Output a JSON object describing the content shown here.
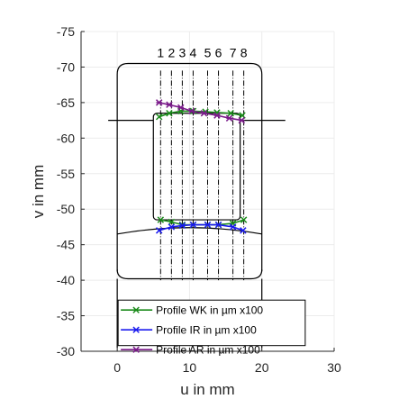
{
  "chart_data": {
    "type": "line",
    "xlabel": "u in mm",
    "ylabel": "v in mm",
    "xlim": [
      -5,
      30
    ],
    "ylim": [
      -75,
      -30
    ],
    "y_reversed": true,
    "grid": true,
    "legend_position": "bottom-right",
    "xticks": [
      0,
      10,
      20,
      30
    ],
    "yticks": [
      -75,
      -70,
      -65,
      -60,
      -55,
      -50,
      -45,
      -40,
      -35,
      -30
    ],
    "segments": {
      "labels": [
        "1",
        "2",
        "3",
        "4",
        "5",
        "6",
        "7",
        "8"
      ],
      "x": [
        6,
        7.5,
        9,
        10.5,
        12.5,
        14,
        16,
        17.5
      ]
    },
    "outlines": [
      {
        "name": "outer",
        "points": [
          [
            0,
            -70.5
          ],
          [
            20,
            -70.5
          ],
          [
            20,
            -41
          ]
        ]
      },
      {
        "name": "inner",
        "points": [
          [
            0,
            -62.5
          ],
          [
            5,
            -62.5
          ],
          [
            5,
            -48.5
          ],
          [
            17,
            -48.5
          ],
          [
            17,
            -62.5
          ],
          [
            22,
            -62.5
          ]
        ]
      }
    ],
    "series": [
      {
        "name": "Profile WK in µm x100",
        "color": "#1a8a1a",
        "top": [
          [
            5.8,
            -63
          ],
          [
            7.2,
            -63.5
          ],
          [
            8.8,
            -63.8
          ],
          [
            10.5,
            -63.8
          ],
          [
            12.2,
            -63.7
          ],
          [
            13.8,
            -63.6
          ],
          [
            15.7,
            -63.5
          ],
          [
            17.3,
            -63.2
          ]
        ],
        "bottom": [
          [
            6,
            -48.5
          ],
          [
            7.5,
            -48.2
          ],
          [
            9,
            -47.8
          ],
          [
            10.5,
            -47.8
          ],
          [
            12.5,
            -47.8
          ],
          [
            14,
            -47.8
          ],
          [
            16,
            -48
          ],
          [
            17.5,
            -48.5
          ]
        ]
      },
      {
        "name": "Profile IR   in µm x100",
        "color": "#1a1aee",
        "top": [],
        "bottom": [
          [
            5.8,
            -47
          ],
          [
            7.5,
            -47.5
          ],
          [
            9,
            -47.7
          ],
          [
            10.5,
            -47.8
          ],
          [
            12.5,
            -47.8
          ],
          [
            14,
            -47.8
          ],
          [
            16,
            -47.5
          ],
          [
            17.4,
            -47
          ]
        ]
      },
      {
        "name": "Profile AR   in µm x100",
        "color": "#7a1a8a",
        "top": [
          [
            5.8,
            -65
          ],
          [
            7.2,
            -64.7
          ],
          [
            8.8,
            -64.3
          ],
          [
            10.3,
            -63.8
          ],
          [
            12,
            -63.5
          ],
          [
            13.8,
            -63.2
          ],
          [
            15.5,
            -62.8
          ],
          [
            17.2,
            -62.5
          ]
        ],
        "bottom": []
      }
    ]
  }
}
